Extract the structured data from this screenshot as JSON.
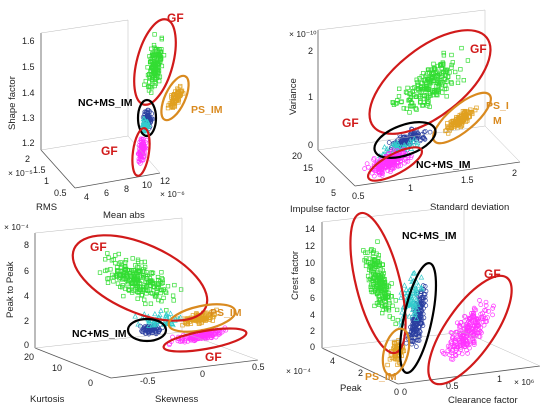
{
  "chart_data": [
    {
      "type": "scatter",
      "panel": "top-left",
      "zlabel": "Shape factor",
      "xlabel": "Mean abs",
      "ylabel": "RMS",
      "z_ticks": [
        "1.2",
        "1.3",
        "1.4",
        "1.5",
        "1.6"
      ],
      "x_ticks": [
        "4",
        "6",
        "8",
        "10",
        "12"
      ],
      "y_ticks": [
        "0.5",
        "1",
        "1.5",
        "2"
      ],
      "x_multiplier": "× 10⁻⁶",
      "y_multiplier": "× 10⁻⁵",
      "annotations": [
        {
          "text": "GF",
          "color": "#d11a1a"
        },
        {
          "text": "NC+MS_IM",
          "color": "#000000"
        },
        {
          "text": "PS_IM",
          "color": "#d98a1f"
        },
        {
          "text": "GF",
          "color": "#d11a1a"
        }
      ]
    },
    {
      "type": "scatter",
      "panel": "top-right",
      "zlabel": "Variance",
      "xlabel": "Standard deviation",
      "ylabel": "Impulse factor",
      "z_ticks": [
        "0",
        "1",
        "2"
      ],
      "x_ticks": [
        "0.5",
        "1",
        "1.5",
        "2"
      ],
      "y_ticks": [
        "5",
        "10",
        "15",
        "20"
      ],
      "z_multiplier": "× 10⁻¹⁰",
      "annotations": [
        {
          "text": "GF",
          "color": "#d11a1a"
        },
        {
          "text": "PS_I",
          "color": "#d98a1f"
        },
        {
          "text": "M",
          "color": "#d98a1f"
        },
        {
          "text": "GF",
          "color": "#d11a1a"
        },
        {
          "text": "NC+MS_IM",
          "color": "#000000"
        }
      ]
    },
    {
      "type": "scatter",
      "panel": "bottom-left",
      "zlabel": "Peak to Peak",
      "xlabel": "Skewness",
      "ylabel": "Kurtosis",
      "z_ticks": [
        "0",
        "2",
        "4",
        "6",
        "8"
      ],
      "x_ticks": [
        "-0.5",
        "0",
        "0.5"
      ],
      "y_ticks": [
        "0",
        "10",
        "20"
      ],
      "z_multiplier": "× 10⁻⁴",
      "annotations": [
        {
          "text": "GF",
          "color": "#d11a1a"
        },
        {
          "text": "PS_IM",
          "color": "#d98a1f"
        },
        {
          "text": "NC+MS_IM",
          "color": "#000000"
        },
        {
          "text": "GF",
          "color": "#d11a1a"
        }
      ]
    },
    {
      "type": "scatter",
      "panel": "bottom-right",
      "zlabel": "Crest factor",
      "xlabel": "Clearance factor",
      "ylabel": "Peak",
      "z_ticks": [
        "0",
        "2",
        "4",
        "6",
        "8",
        "10",
        "12",
        "14"
      ],
      "x_ticks": [
        "0",
        "0.5",
        "1"
      ],
      "y_ticks": [
        "0",
        "2",
        "4"
      ],
      "x_multiplier": "× 10⁶",
      "y_multiplier": "× 10⁻⁴",
      "annotations": [
        {
          "text": "NC+MS_IM",
          "color": "#000000"
        },
        {
          "text": "GF",
          "color": "#d11a1a"
        },
        {
          "text": "PS_IM",
          "color": "#d98a1f"
        }
      ]
    }
  ],
  "colors": {
    "gf_cluster": "#33dd33",
    "ps_cluster": "#e0a020",
    "nc_cluster": "#2b3fa0",
    "ms_cluster": "#ff33ff",
    "alt_cluster": "#33cccc",
    "gf_ellipse": "#d11a1a",
    "ps_ellipse": "#d98a1f",
    "nc_ellipse": "#000000",
    "axis": "#444444"
  }
}
